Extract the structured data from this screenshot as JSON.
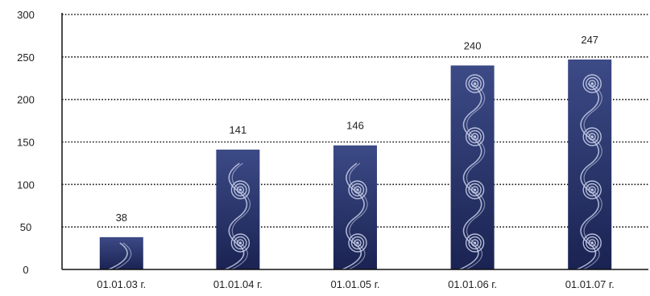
{
  "chart_data": {
    "type": "bar",
    "categories": [
      "01.01.03 г.",
      "01.01.04 г.",
      "01.01.05 г.",
      "01.01.06 г.",
      "01.01.07 г."
    ],
    "values": [
      38,
      141,
      146,
      240,
      247
    ],
    "data_labels": [
      "38",
      "141",
      "146",
      "240",
      "247"
    ],
    "y_ticks": [
      "0",
      "50",
      "100",
      "150",
      "200",
      "250",
      "300"
    ],
    "ylim": [
      0,
      300
    ],
    "grid": true,
    "grid_style": "dotted",
    "title": "",
    "xlabel": "",
    "ylabel": "",
    "colors": {
      "bar_top": "#3c4a86",
      "bar_bottom": "#1a2352",
      "ornament": "#c6cde6",
      "grid": "#111111",
      "axis": "#111111"
    }
  }
}
